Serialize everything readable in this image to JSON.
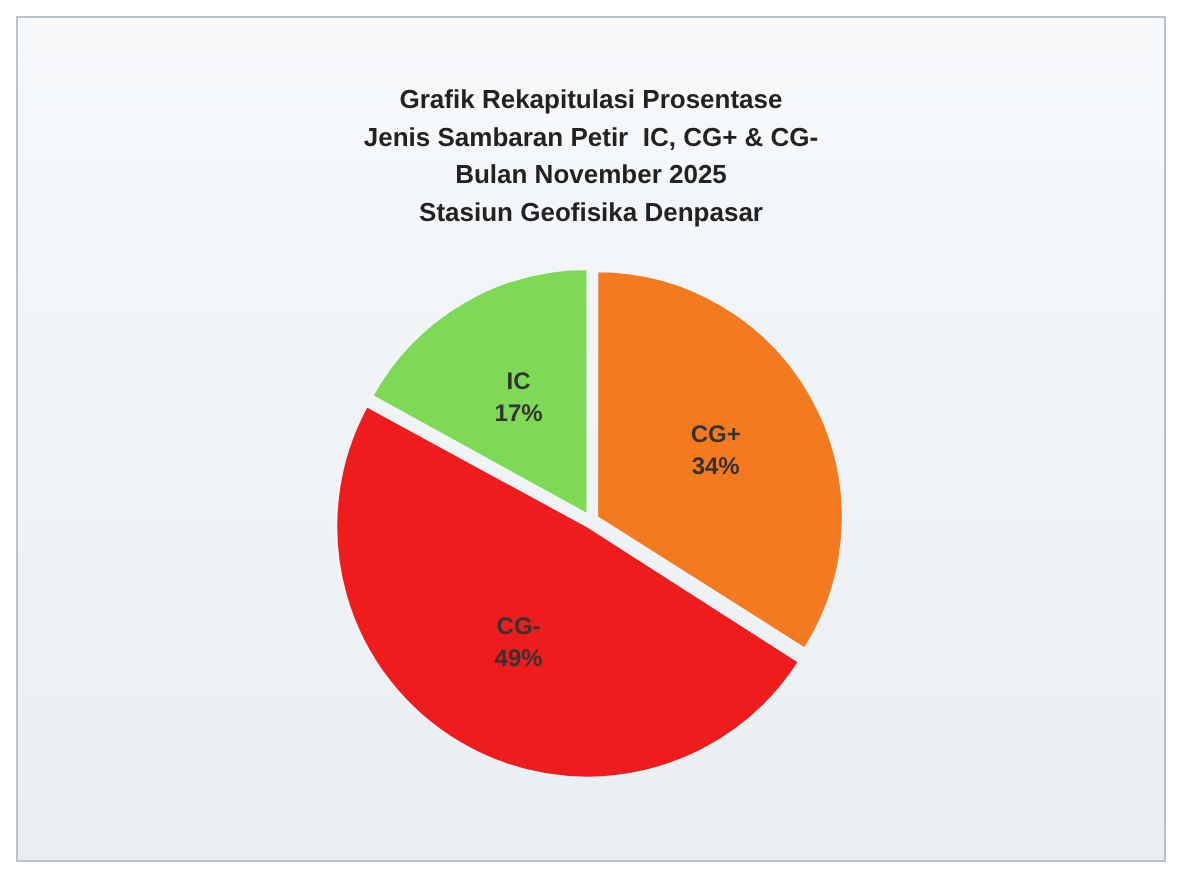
{
  "chart_data": {
    "type": "pie",
    "title": "Grafik Rekapitulasi Prosentase\nJenis Sambaran Petir  IC, CG+ & CG-\nBulan November 2025\nStasiun Geofisika Denpasar",
    "categories": [
      "CG+",
      "CG-",
      "IC"
    ],
    "values": [
      34,
      49,
      17
    ],
    "value_labels": [
      "34%",
      "49%",
      "17%"
    ],
    "colors": [
      "#f47a20",
      "#ee1c1c",
      "#7ed957"
    ],
    "legend": false
  }
}
